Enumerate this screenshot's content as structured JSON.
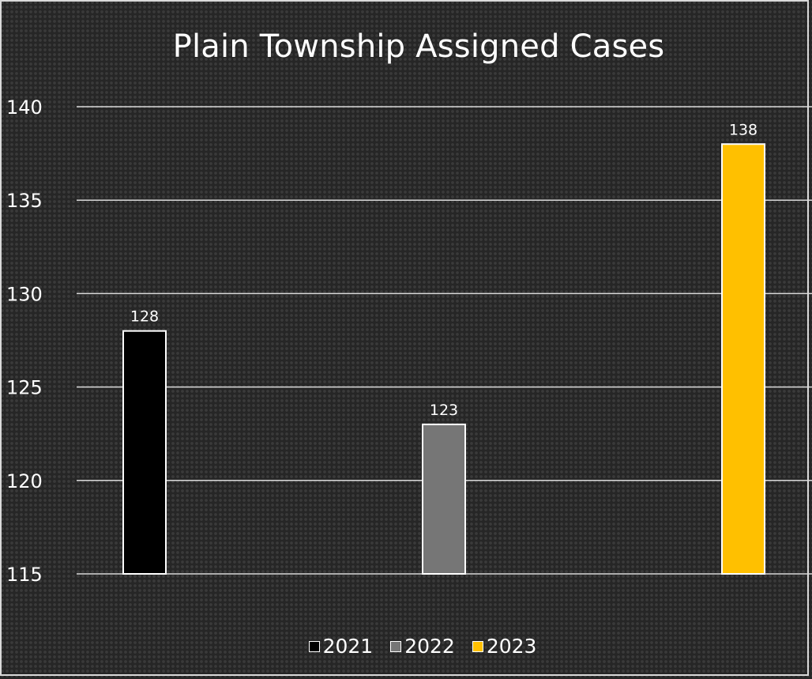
{
  "chart_data": {
    "type": "bar",
    "title": "Plain Township Assigned  Cases",
    "xlabel": "",
    "ylabel": "",
    "ylim": [
      115,
      140
    ],
    "yticks": [
      115,
      120,
      125,
      130,
      135,
      140
    ],
    "ytick_labels": [
      "115",
      "120",
      "125",
      "130",
      "135",
      "140"
    ],
    "grid": true,
    "legend_position": "bottom",
    "series": [
      {
        "name": "2021",
        "value": 128,
        "label": "128",
        "color": "#000000"
      },
      {
        "name": "2022",
        "value": 123,
        "label": "123",
        "color": "#767676"
      },
      {
        "name": "2023",
        "value": 138,
        "label": "138",
        "color": "#ffc000"
      }
    ]
  }
}
